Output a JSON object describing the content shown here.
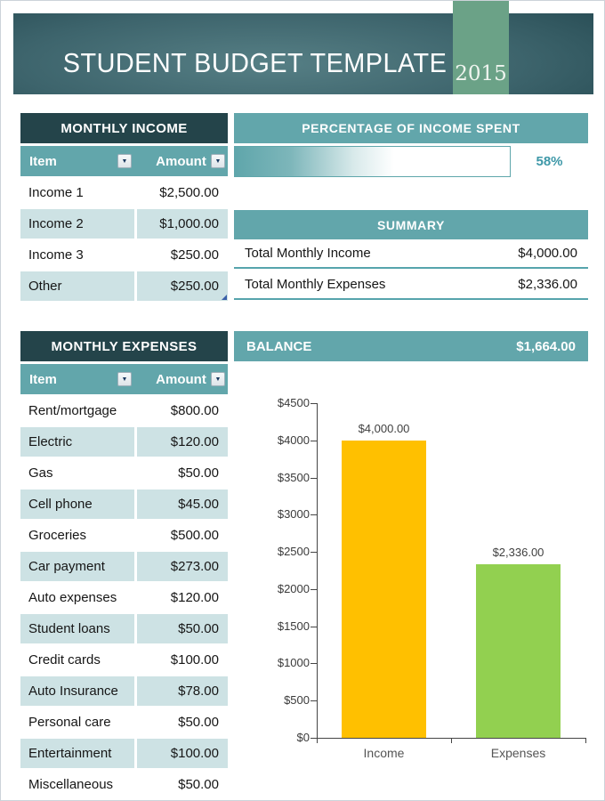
{
  "header": {
    "title": "STUDENT BUDGET TEMPLATE",
    "year": "2015"
  },
  "income": {
    "title": "MONTHLY INCOME",
    "columns": {
      "item": "Item",
      "amount": "Amount"
    },
    "rows": [
      {
        "item": "Income 1",
        "amount": "$2,500.00"
      },
      {
        "item": "Income 2",
        "amount": "$1,000.00"
      },
      {
        "item": "Income 3",
        "amount": "$250.00"
      },
      {
        "item": "Other",
        "amount": "$250.00"
      }
    ]
  },
  "percentage": {
    "title": "PERCENTAGE OF INCOME SPENT",
    "percent": 58,
    "label": "58%"
  },
  "summary": {
    "title": "SUMMARY",
    "rows": [
      {
        "label": "Total Monthly Income",
        "value": "$4,000.00"
      },
      {
        "label": "Total Monthly Expenses",
        "value": "$2,336.00"
      }
    ]
  },
  "expenses": {
    "title": "MONTHLY EXPENSES",
    "columns": {
      "item": "Item",
      "amount": "Amount"
    },
    "rows": [
      {
        "item": "Rent/mortgage",
        "amount": "$800.00"
      },
      {
        "item": "Electric",
        "amount": "$120.00"
      },
      {
        "item": "Gas",
        "amount": "$50.00"
      },
      {
        "item": "Cell phone",
        "amount": "$45.00"
      },
      {
        "item": "Groceries",
        "amount": "$500.00"
      },
      {
        "item": "Car payment",
        "amount": "$273.00"
      },
      {
        "item": "Auto expenses",
        "amount": "$120.00"
      },
      {
        "item": "Student loans",
        "amount": "$50.00"
      },
      {
        "item": "Credit cards",
        "amount": "$100.00"
      },
      {
        "item": "Auto Insurance",
        "amount": "$78.00"
      },
      {
        "item": "Personal care",
        "amount": "$50.00"
      },
      {
        "item": "Entertainment",
        "amount": "$100.00"
      },
      {
        "item": "Miscellaneous",
        "amount": "$50.00"
      }
    ]
  },
  "balance": {
    "label": "BALANCE",
    "value": "$1,664.00"
  },
  "chart_data": {
    "type": "bar",
    "categories": [
      "Income",
      "Expenses"
    ],
    "values": [
      4000,
      2336
    ],
    "data_labels": [
      "$4,000.00",
      "$2,336.00"
    ],
    "bar_colors": [
      "#FFC000",
      "#92D050"
    ],
    "title": "",
    "xlabel": "",
    "ylabel": "",
    "ylim": [
      0,
      4500
    ],
    "ytick_step": 500,
    "ytick_labels": [
      "$0",
      "$500",
      "$1000",
      "$1500",
      "$2000",
      "$2500",
      "$3000",
      "$3500",
      "$4000",
      "$4500"
    ],
    "grid": false,
    "legend": false
  },
  "colors": {
    "teal": "#62A6AB",
    "dark_teal": "#24444A",
    "light_row": "#CDE2E4",
    "badge_green": "#6BA287",
    "percent_text": "#3E98A8",
    "income_bar": "#FFC000",
    "expenses_bar": "#92D050"
  }
}
